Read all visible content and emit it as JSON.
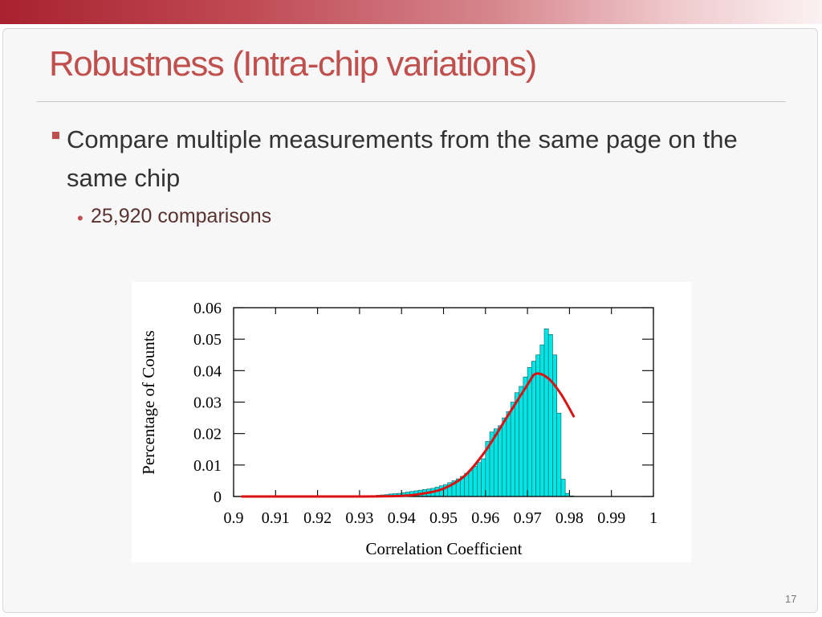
{
  "slide": {
    "title": "Robustness (Intra-chip variations)",
    "bullet_main": "Compare multiple measurements from the same page on the same chip",
    "bullet_sub": "25,920 comparisons",
    "page_number": "17"
  },
  "colors": {
    "title": "#c0504d",
    "bars": "#00e5e5",
    "bar_edge": "#0a5e5e",
    "fit_curve": "#dd1111"
  },
  "chart_data": {
    "type": "bar",
    "title": "",
    "xlabel": "Correlation Coefficient",
    "ylabel": "Percentage of Counts",
    "xlim": [
      0.9,
      1.0
    ],
    "ylim": [
      0,
      0.06
    ],
    "x_ticks": [
      "0.9",
      "0.91",
      "0.92",
      "0.93",
      "0.94",
      "0.95",
      "0.96",
      "0.97",
      "0.98",
      "0.99",
      "1"
    ],
    "y_ticks": [
      "0",
      "0.01",
      "0.02",
      "0.03",
      "0.04",
      "0.05",
      "0.06"
    ],
    "grid": false,
    "histogram": {
      "bin_width": 0.001,
      "bin_start": [
        0.932,
        0.933,
        0.934,
        0.935,
        0.936,
        0.937,
        0.938,
        0.939,
        0.94,
        0.941,
        0.942,
        0.943,
        0.944,
        0.945,
        0.946,
        0.947,
        0.948,
        0.949,
        0.95,
        0.951,
        0.952,
        0.953,
        0.954,
        0.955,
        0.956,
        0.957,
        0.958,
        0.959,
        0.96,
        0.961,
        0.962,
        0.963,
        0.964,
        0.965,
        0.966,
        0.967,
        0.968,
        0.969,
        0.97,
        0.971,
        0.972,
        0.973,
        0.974,
        0.975,
        0.976,
        0.977,
        0.978,
        0.979,
        0.98
      ],
      "values": [
        0.0002,
        0.0003,
        0.0004,
        0.0005,
        0.0006,
        0.0008,
        0.0009,
        0.001,
        0.0012,
        0.0014,
        0.0016,
        0.0018,
        0.002,
        0.0022,
        0.0024,
        0.0026,
        0.003,
        0.0034,
        0.0038,
        0.0044,
        0.005,
        0.0056,
        0.0064,
        0.0074,
        0.0084,
        0.0096,
        0.0108,
        0.012,
        0.0175,
        0.0205,
        0.0215,
        0.0225,
        0.025,
        0.027,
        0.03,
        0.033,
        0.035,
        0.038,
        0.041,
        0.043,
        0.045,
        0.0482,
        0.0533,
        0.0515,
        0.045,
        0.0265,
        0.0055,
        0.001,
        0.0002
      ]
    },
    "fit_curve": {
      "x": [
        0.902,
        0.92,
        0.93,
        0.94,
        0.945,
        0.95,
        0.955,
        0.96,
        0.965,
        0.97,
        0.972,
        0.975,
        0.978,
        0.981
      ],
      "y": [
        0,
        0,
        0,
        0.0002,
        0.0009,
        0.0025,
        0.0065,
        0.0145,
        0.025,
        0.0355,
        0.039,
        0.0375,
        0.0325,
        0.0255
      ]
    }
  }
}
